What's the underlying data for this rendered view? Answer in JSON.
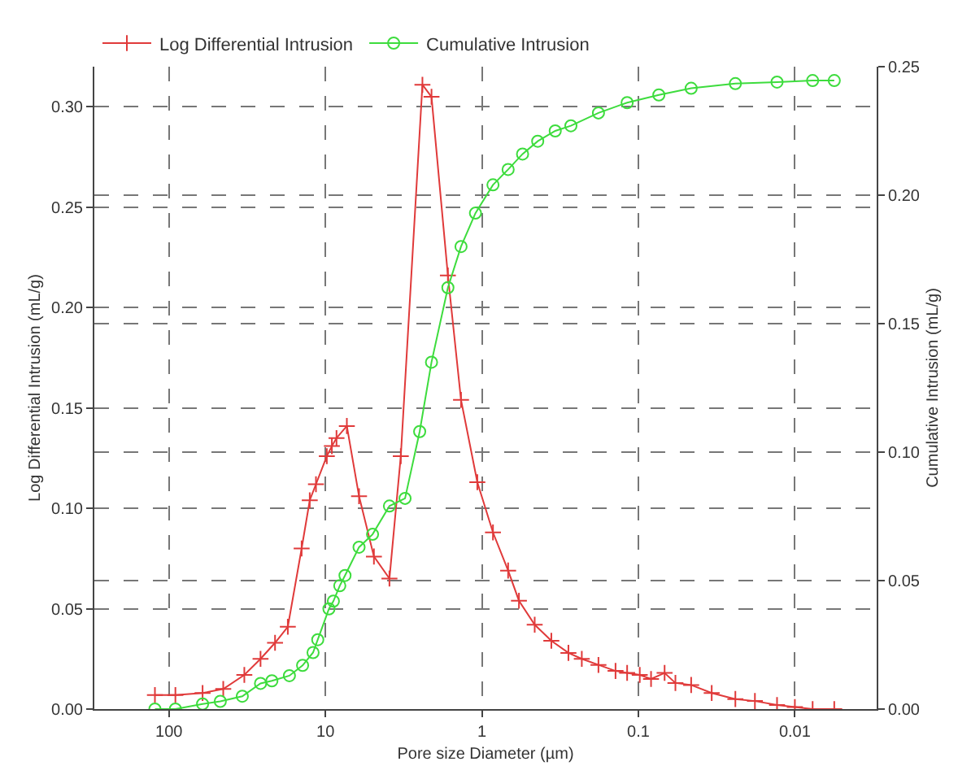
{
  "chart_data": {
    "type": "line",
    "xlabel": "Pore size Diameter (µm)",
    "ylabel": "Log Differential Intrusion (mL/g)",
    "y2label": "Cumulative Intrusion (mL/g)",
    "log": "x",
    "grid": true,
    "legend": "top",
    "line_style": "solid",
    "xlim": [
      300,
      0.003
    ],
    "xticks": [
      100,
      10,
      1,
      0.1,
      0.01
    ],
    "ylim": [
      0,
      0.32
    ],
    "yticks": [
      {
        "value": 0,
        "label": "0.00"
      },
      0.05,
      {
        "value": 0.1,
        "label": "0.10"
      },
      0.15,
      {
        "value": 0.2,
        "label": "0.20"
      },
      0.25,
      {
        "value": 0.3,
        "label": "0.30"
      }
    ],
    "y2lim": [
      0,
      0.25
    ],
    "y2ticks": [
      {
        "value": 0,
        "label": "0.00"
      },
      0.05,
      {
        "value": 0.1,
        "label": "0.10"
      },
      0.15,
      {
        "value": 0.2,
        "label": "0.20"
      },
      0.25
    ],
    "series": [
      {
        "name": "Log Differential Intrusion",
        "color": "#e03a3a",
        "marker": "cross",
        "x": [
          123,
          91,
          61,
          45,
          33,
          26,
          21,
          17.4,
          14.2,
          12.6,
          11.5,
          9.8,
          9.1,
          8.5,
          7.3,
          6.1,
          4.9,
          3.9,
          3.3,
          2.4,
          2.1,
          1.65,
          1.36,
          1.07,
          0.85,
          0.68,
          0.58,
          0.46,
          0.36,
          0.28,
          0.23,
          0.18,
          0.14,
          0.118,
          0.098,
          0.083,
          0.068,
          0.058,
          0.046,
          0.034,
          0.024,
          0.018,
          0.013,
          0.01,
          0.0077,
          0.0056
        ],
        "values": [
          0.007,
          0.007,
          0.008,
          0.01,
          0.017,
          0.025,
          0.033,
          0.041,
          0.08,
          0.104,
          0.112,
          0.126,
          0.131,
          0.135,
          0.141,
          0.106,
          0.076,
          0.065,
          0.126,
          0.311,
          0.305,
          0.216,
          0.154,
          0.113,
          0.088,
          0.069,
          0.054,
          0.042,
          0.034,
          0.028,
          0.025,
          0.022,
          0.019,
          0.018,
          0.017,
          0.015,
          0.018,
          0.013,
          0.012,
          0.008,
          0.005,
          0.004,
          0.002,
          0.001,
          0,
          0
        ]
      },
      {
        "name": "Cumulative Intrusion",
        "color": "#3ddc3d",
        "marker": "circle",
        "axis": "y2",
        "x": [
          123,
          91,
          61,
          47,
          34,
          26,
          22,
          17,
          14,
          12,
          11.2,
          9.5,
          8.9,
          8.1,
          7.5,
          6.1,
          5.0,
          3.9,
          3.1,
          2.5,
          2.1,
          1.65,
          1.36,
          1.1,
          0.85,
          0.68,
          0.55,
          0.44,
          0.34,
          0.27,
          0.18,
          0.118,
          0.074,
          0.046,
          0.024,
          0.013,
          0.0077,
          0.0056
        ],
        "values": [
          0,
          0,
          0.002,
          0.003,
          0.005,
          0.01,
          0.011,
          0.013,
          0.017,
          0.022,
          0.027,
          0.039,
          0.042,
          0.048,
          0.052,
          0.063,
          0.068,
          0.079,
          0.082,
          0.108,
          0.135,
          0.164,
          0.18,
          0.193,
          0.204,
          0.21,
          0.216,
          0.221,
          0.225,
          0.227,
          0.232,
          0.236,
          0.239,
          0.2416,
          0.2434,
          0.244,
          0.2446,
          0.2446
        ]
      }
    ]
  }
}
